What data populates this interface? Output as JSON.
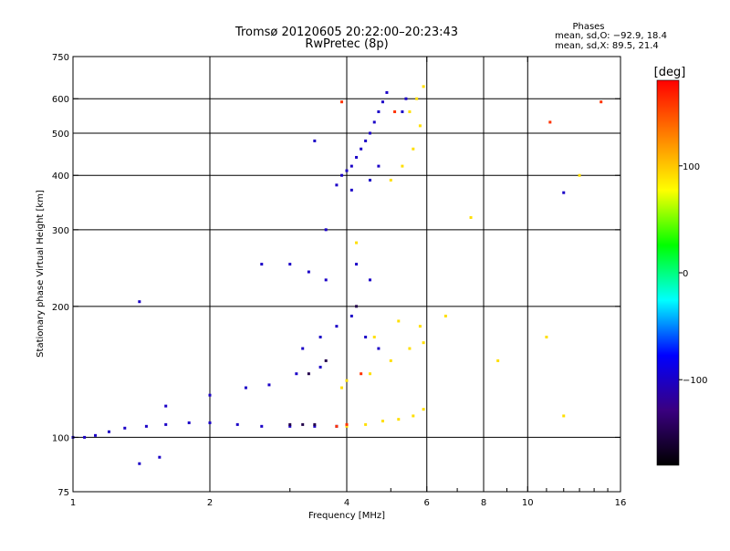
{
  "chart_data": {
    "type": "scatter",
    "title": "Tromsø 20120605 20:22:00–20:23:43",
    "subtitle": "RwPretec (8p)",
    "xlabel": "Frequency [MHz]",
    "ylabel": "Stationary phase Virtual Height [km]",
    "x_scale": "log",
    "y_scale": "log",
    "xlim": [
      1,
      16
    ],
    "ylim": [
      75,
      750
    ],
    "x_ticks": [
      1,
      2,
      4,
      6,
      8,
      10,
      16
    ],
    "x_tick_labels": [
      "1",
      "2",
      "4",
      "6",
      "8",
      "10",
      "16"
    ],
    "x_grid_major": [
      2,
      4,
      6,
      8,
      10
    ],
    "x_minor_ticks": [
      3,
      5,
      7,
      9
    ],
    "y_ticks": [
      75,
      100,
      200,
      300,
      400,
      500,
      600,
      750
    ],
    "y_tick_labels": [
      "75",
      "100",
      "200",
      "300",
      "400",
      "500",
      "600",
      "750"
    ],
    "y_grid_major": [
      100,
      200,
      300,
      400,
      500,
      600
    ],
    "grid": true,
    "phases_box": {
      "heading": "Phases",
      "line_o": "mean, sd,O: −92.9, 18.4",
      "line_x": "mean, sd,X:  89.5, 21.4"
    },
    "colorbar": {
      "label": "[deg]",
      "range": [
        -180,
        180
      ],
      "ticks": [
        100,
        0,
        -100
      ],
      "tick_labels": [
        "100",
        "0",
        "−100"
      ],
      "stops": [
        "#000000",
        "#3a0080",
        "#0000ff",
        "#00ffff",
        "#00ff00",
        "#ffff00",
        "#ff8000",
        "#ff0000"
      ]
    },
    "series": [
      {
        "mode": "O",
        "phase_deg": -100,
        "points": [
          [
            1.0,
            100
          ],
          [
            1.06,
            100
          ],
          [
            1.12,
            101
          ],
          [
            1.2,
            103
          ],
          [
            1.3,
            105
          ],
          [
            1.45,
            106
          ],
          [
            1.6,
            107
          ],
          [
            1.8,
            108
          ],
          [
            2.0,
            108
          ],
          [
            2.3,
            107
          ],
          [
            2.6,
            106
          ],
          [
            3.0,
            106
          ],
          [
            3.4,
            106
          ],
          [
            3.8,
            106
          ],
          [
            1.6,
            118
          ],
          [
            2.0,
            125
          ],
          [
            2.4,
            130
          ],
          [
            2.7,
            132
          ],
          [
            3.1,
            140
          ],
          [
            3.5,
            145
          ],
          [
            3.2,
            160
          ],
          [
            3.5,
            170
          ],
          [
            3.8,
            180
          ],
          [
            4.1,
            190
          ],
          [
            4.4,
            170
          ],
          [
            4.7,
            160
          ],
          [
            3.0,
            250
          ],
          [
            3.3,
            240
          ],
          [
            3.6,
            230
          ],
          [
            4.2,
            250
          ],
          [
            4.5,
            230
          ],
          [
            1.4,
            205
          ],
          [
            2.6,
            250
          ],
          [
            3.8,
            380
          ],
          [
            3.9,
            400
          ],
          [
            4.0,
            410
          ],
          [
            4.1,
            420
          ],
          [
            4.2,
            440
          ],
          [
            4.3,
            460
          ],
          [
            4.4,
            480
          ],
          [
            4.5,
            500
          ],
          [
            4.6,
            530
          ],
          [
            4.7,
            560
          ],
          [
            4.8,
            590
          ],
          [
            4.9,
            620
          ],
          [
            4.1,
            370
          ],
          [
            4.5,
            390
          ],
          [
            4.7,
            420
          ],
          [
            3.6,
            300
          ],
          [
            3.4,
            480
          ],
          [
            5.3,
            560
          ],
          [
            5.4,
            600
          ],
          [
            1.4,
            87
          ],
          [
            1.55,
            90
          ],
          [
            12.0,
            365
          ]
        ]
      },
      {
        "mode": "X",
        "phase_deg": 90,
        "points": [
          [
            4.0,
            106
          ],
          [
            4.4,
            107
          ],
          [
            4.8,
            109
          ],
          [
            5.2,
            110
          ],
          [
            5.6,
            112
          ],
          [
            5.9,
            116
          ],
          [
            4.0,
            135
          ],
          [
            4.5,
            140
          ],
          [
            5.0,
            150
          ],
          [
            5.5,
            160
          ],
          [
            5.9,
            165
          ],
          [
            5.8,
            180
          ],
          [
            4.2,
            280
          ],
          [
            5.0,
            390
          ],
          [
            5.3,
            420
          ],
          [
            5.6,
            460
          ],
          [
            5.8,
            520
          ],
          [
            5.5,
            560
          ],
          [
            5.7,
            600
          ],
          [
            5.9,
            640
          ],
          [
            4.6,
            170
          ],
          [
            5.2,
            185
          ],
          [
            3.9,
            130
          ],
          [
            6.6,
            190
          ],
          [
            7.5,
            320
          ],
          [
            8.6,
            150
          ],
          [
            11.0,
            170
          ],
          [
            13.0,
            400
          ],
          [
            12.0,
            112
          ]
        ]
      },
      {
        "mode": "mixed",
        "phase_deg": 160,
        "points": [
          [
            3.8,
            106
          ],
          [
            4.0,
            107
          ],
          [
            4.3,
            140
          ],
          [
            3.9,
            590
          ],
          [
            5.1,
            560
          ],
          [
            11.2,
            530
          ],
          [
            14.5,
            590
          ]
        ]
      },
      {
        "mode": "mixed",
        "phase_deg": -150,
        "points": [
          [
            3.0,
            107
          ],
          [
            3.2,
            107
          ],
          [
            3.4,
            107
          ],
          [
            3.3,
            140
          ],
          [
            3.6,
            150
          ],
          [
            4.2,
            200
          ]
        ]
      }
    ]
  }
}
